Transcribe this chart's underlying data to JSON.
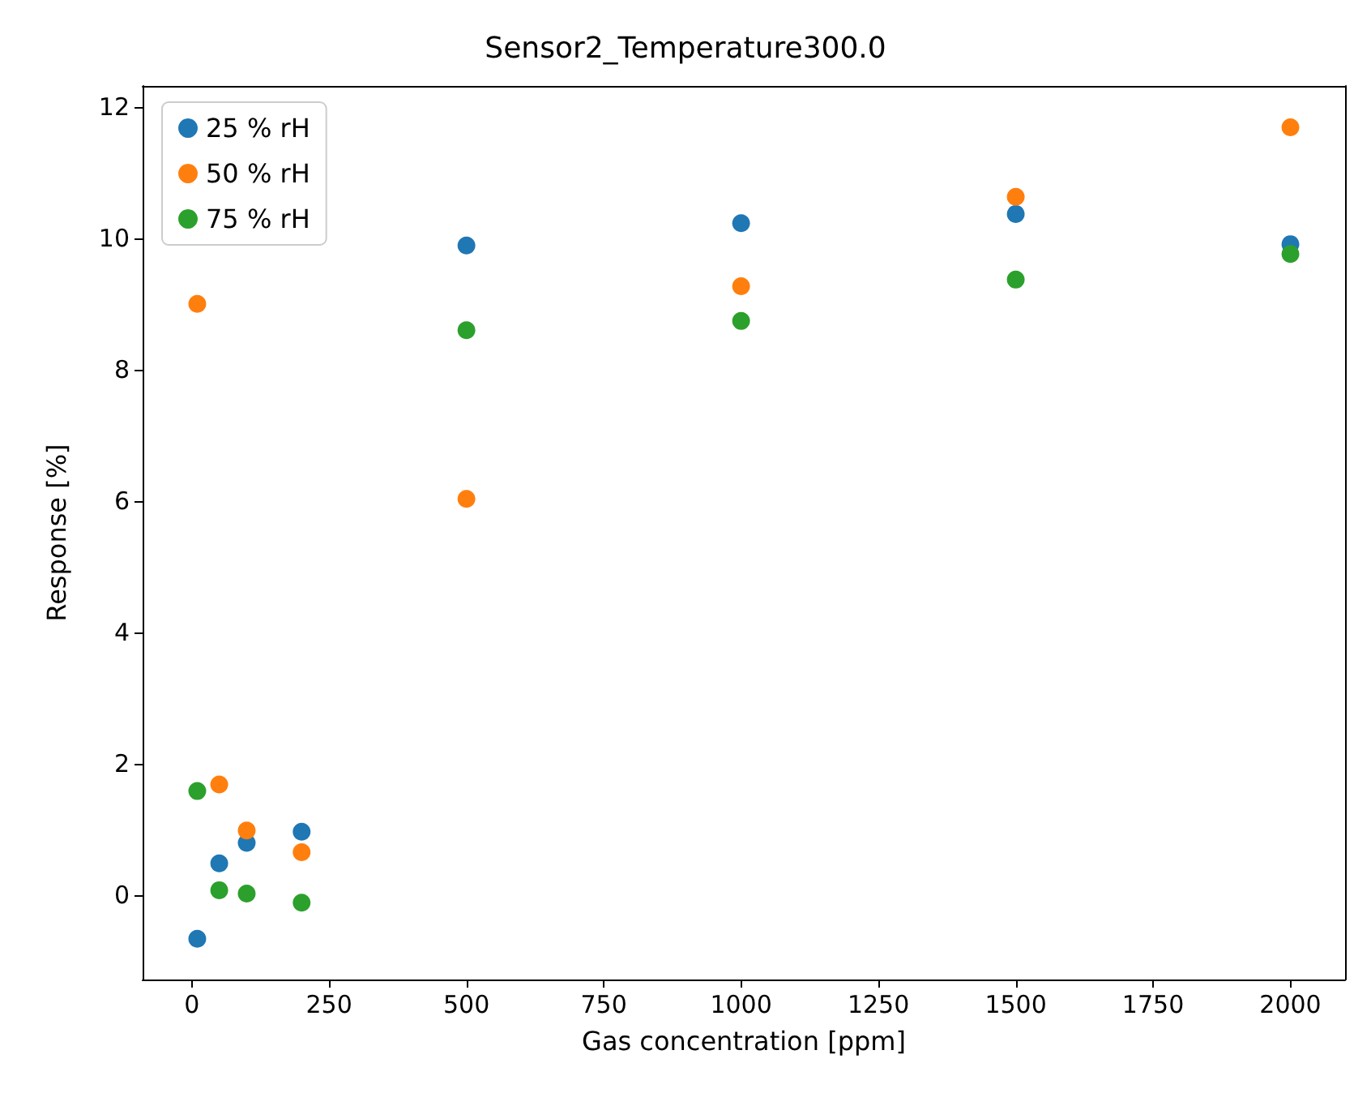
{
  "chart_data": {
    "type": "scatter",
    "title": "Sensor2_Temperature300.0",
    "xlabel": "Gas concentration [ppm]",
    "ylabel": "Response [%]",
    "x": [
      10,
      50,
      100,
      200,
      500,
      1000,
      1500,
      2000
    ],
    "series": [
      {
        "name": "25 % rH",
        "color": "#1f77b4",
        "values": [
          -0.67,
          0.48,
          0.79,
          0.96,
          9.89,
          10.23,
          10.37,
          9.91
        ]
      },
      {
        "name": "50 % rH",
        "color": "#ff7f0e",
        "values": [
          9.0,
          1.68,
          0.98,
          0.65,
          6.03,
          9.27,
          10.63,
          11.69
        ]
      },
      {
        "name": "75 % rH",
        "color": "#2ca02c",
        "values": [
          1.58,
          0.07,
          0.02,
          -0.12,
          8.6,
          8.74,
          9.37,
          9.76
        ]
      }
    ],
    "xlim": [
      -89.5,
      2099.5
    ],
    "ylim": [
      -1.29,
      12.32
    ],
    "xticks": [
      0,
      250,
      500,
      750,
      1000,
      1250,
      1500,
      1750,
      2000
    ],
    "yticks": [
      0,
      2,
      4,
      6,
      8,
      10,
      12
    ],
    "legend": "top left",
    "marker": "circle",
    "grid": false
  }
}
